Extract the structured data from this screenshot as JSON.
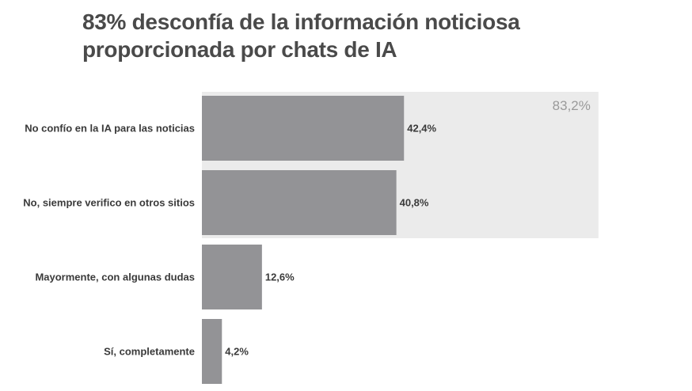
{
  "title": {
    "line1": "83% desconfía de la información noticiosa",
    "line2": "proporcionada por chats de IA"
  },
  "colors": {
    "bar": "#939396",
    "highlight_band": "#ebebeb",
    "title": "#4a4a4a",
    "label": "#3a3a3a",
    "group_label": "#9a9a9a"
  },
  "chart_data": {
    "type": "bar",
    "orientation": "horizontal",
    "categories": [
      "No confío en la IA para las noticias",
      "No, siempre verifico en otros sitios",
      "Mayormente, con algunas dudas",
      "Sí, completamente"
    ],
    "values": [
      42.4,
      40.8,
      12.6,
      4.2
    ],
    "value_labels": [
      "42,4%",
      "40,8%",
      "12,6%",
      "4,2%"
    ],
    "xlim": [
      0,
      100
    ],
    "highlight_group": {
      "label": "83,2%",
      "value": 83.2,
      "categories": [
        0,
        1
      ]
    },
    "grid": false,
    "legend": "none"
  }
}
